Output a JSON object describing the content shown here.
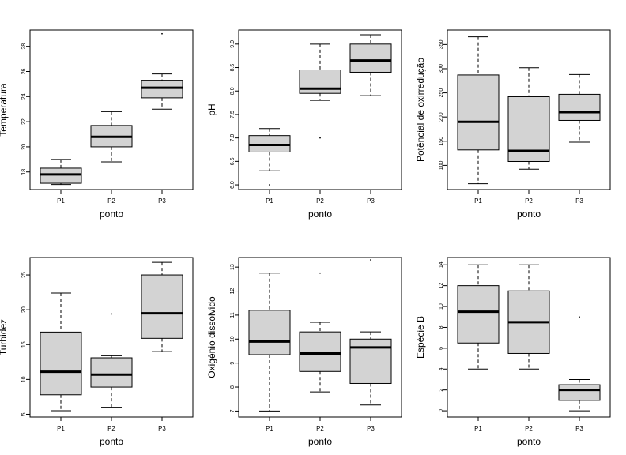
{
  "chart_data": [
    {
      "type": "boxplot",
      "xlabel": "ponto",
      "ylabel": "Temperatura",
      "categories": [
        "P1",
        "P2",
        "P3"
      ],
      "yticks": [
        "18",
        "20",
        "22",
        "24",
        "26",
        "28"
      ],
      "ylim": [
        16.6,
        29.3
      ],
      "boxes": [
        {
          "min": 17.0,
          "q1": 17.1,
          "median": 17.8,
          "q3": 18.3,
          "max": 19.0,
          "outliers": []
        },
        {
          "min": 18.8,
          "q1": 20.0,
          "median": 20.8,
          "q3": 21.7,
          "max": 22.8,
          "outliers": []
        },
        {
          "min": 23.0,
          "q1": 23.9,
          "median": 24.7,
          "q3": 25.3,
          "max": 25.8,
          "outliers": [
            29.0
          ]
        }
      ]
    },
    {
      "type": "boxplot",
      "xlabel": "ponto",
      "ylabel": "pH",
      "categories": [
        "P1",
        "P2",
        "P3"
      ],
      "yticks": [
        "6.0",
        "6.5",
        "7.0",
        "7.5",
        "8.0",
        "8.5",
        "9.0"
      ],
      "ylim": [
        5.9,
        9.3
      ],
      "boxes": [
        {
          "min": 6.3,
          "q1": 6.7,
          "median": 6.85,
          "q3": 7.05,
          "max": 7.2,
          "outliers": [
            6.0
          ]
        },
        {
          "min": 7.8,
          "q1": 7.95,
          "median": 8.05,
          "q3": 8.45,
          "max": 9.0,
          "outliers": [
            7.0
          ]
        },
        {
          "min": 7.9,
          "q1": 8.4,
          "median": 8.65,
          "q3": 9.0,
          "max": 9.2,
          "outliers": []
        }
      ]
    },
    {
      "type": "boxplot",
      "xlabel": "ponto",
      "ylabel": "Potêncial de oxirredução",
      "categories": [
        "P1",
        "P2",
        "P3"
      ],
      "yticks": [
        "100",
        "150",
        "200",
        "250",
        "300",
        "350"
      ],
      "ylim": [
        50,
        380
      ],
      "boxes": [
        {
          "min": 62,
          "q1": 132,
          "median": 190,
          "q3": 287,
          "max": 366,
          "outliers": []
        },
        {
          "min": 92,
          "q1": 108,
          "median": 130,
          "q3": 242,
          "max": 302,
          "outliers": []
        },
        {
          "min": 148,
          "q1": 193,
          "median": 210,
          "q3": 247,
          "max": 288,
          "outliers": []
        }
      ]
    },
    {
      "type": "boxplot",
      "xlabel": "ponto",
      "ylabel": "Turbidez",
      "categories": [
        "P1",
        "P2",
        "P3"
      ],
      "yticks": [
        "5",
        "10",
        "15",
        "20",
        "25"
      ],
      "ylim": [
        4.6,
        27.5
      ],
      "boxes": [
        {
          "min": 5.5,
          "q1": 7.8,
          "median": 11.1,
          "q3": 16.8,
          "max": 22.4,
          "outliers": []
        },
        {
          "min": 6.0,
          "q1": 8.9,
          "median": 10.7,
          "q3": 13.1,
          "max": 13.4,
          "outliers": [
            19.4
          ]
        },
        {
          "min": 14.0,
          "q1": 15.9,
          "median": 19.5,
          "q3": 25.0,
          "max": 26.8,
          "outliers": []
        }
      ]
    },
    {
      "type": "boxplot",
      "xlabel": "ponto",
      "ylabel": "Oxigênio dissolvido",
      "categories": [
        "P1",
        "P2",
        "P3"
      ],
      "yticks": [
        "7",
        "8",
        "9",
        "10",
        "11",
        "12",
        "13"
      ],
      "ylim": [
        6.75,
        13.4
      ],
      "boxes": [
        {
          "min": 7.0,
          "q1": 9.35,
          "median": 9.9,
          "q3": 11.2,
          "max": 12.75,
          "outliers": []
        },
        {
          "min": 7.8,
          "q1": 8.65,
          "median": 9.4,
          "q3": 10.3,
          "max": 10.7,
          "outliers": [
            12.75
          ]
        },
        {
          "min": 7.25,
          "q1": 8.15,
          "median": 9.65,
          "q3": 10.0,
          "max": 10.3,
          "outliers": [
            13.3
          ]
        }
      ]
    },
    {
      "type": "boxplot",
      "xlabel": "ponto",
      "ylabel": "Espécie B",
      "categories": [
        "P1",
        "P2",
        "P3"
      ],
      "yticks": [
        "0",
        "2",
        "4",
        "6",
        "8",
        "10",
        "12",
        "14"
      ],
      "ylim": [
        -0.6,
        14.7
      ],
      "boxes": [
        {
          "min": 4.0,
          "q1": 6.5,
          "median": 9.5,
          "q3": 12.0,
          "max": 14.0,
          "outliers": []
        },
        {
          "min": 4.0,
          "q1": 5.5,
          "median": 8.5,
          "q3": 11.5,
          "max": 14.0,
          "outliers": []
        },
        {
          "min": 0.0,
          "q1": 1.0,
          "median": 2.0,
          "q3": 2.5,
          "max": 3.0,
          "outliers": [
            9.0
          ]
        }
      ]
    }
  ]
}
